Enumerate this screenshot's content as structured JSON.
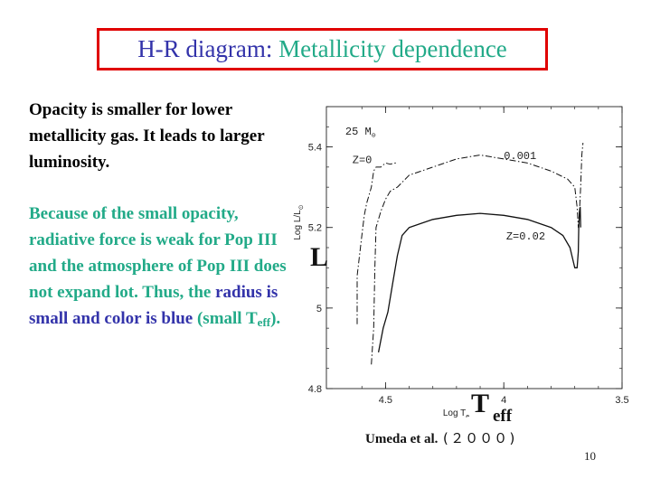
{
  "slide": {
    "title_part1": "H-R diagram:",
    "title_part2": "Metallicity dependence",
    "para1": "Opacity is smaller for lower metallicity gas. It leads to larger luminosity.",
    "para2_green": "Because of the small opacity, radiative force is weak for Pop III and the atmosphere of Pop III does not expand lot. Thus, the",
    "para2_blue": "radius is small and color is blue",
    "para2_green2": "(small T",
    "para2_sub": "eff",
    "para2_end": ").",
    "overlay_L": "L",
    "overlay_T": "T",
    "overlay_eff": "eff",
    "caption_authors": "Umeda et al.",
    "caption_year": "(２０００)",
    "page_number": "10"
  },
  "chart_data": {
    "type": "line",
    "xlabel": "Log T",
    "xlabel_sub": "e",
    "ylabel": "Log L/L",
    "ylabel_sub": "⊙",
    "xlim": [
      4.75,
      3.5
    ],
    "ylim": [
      4.8,
      5.5
    ],
    "x_ticks": [
      "4.5",
      "4",
      "3.5"
    ],
    "x_tick_values": [
      4.5,
      4.0,
      3.5
    ],
    "y_ticks": [
      "4.8",
      "5",
      "5.2",
      "5.4"
    ],
    "y_tick_values": [
      4.8,
      5.0,
      5.2,
      5.4
    ],
    "annotations": [
      {
        "text": "25  M",
        "sub": "⊙",
        "x": 4.67,
        "y": 5.43
      },
      {
        "text": "Z=0",
        "x": 4.64,
        "y": 5.36
      },
      {
        "text": "0.001",
        "x": 4.0,
        "y": 5.37
      },
      {
        "text": "Z=0.02",
        "x": 3.99,
        "y": 5.17
      }
    ],
    "series": [
      {
        "name": "Z=0",
        "style": "dashdot",
        "x": [
          4.62,
          4.62,
          4.6,
          4.59,
          4.58,
          4.57,
          4.56,
          4.555,
          4.55,
          4.54,
          4.52,
          4.51,
          4.5,
          4.48,
          4.46,
          4.45
        ],
        "y": [
          4.96,
          5.08,
          5.18,
          5.23,
          5.26,
          5.28,
          5.3,
          5.32,
          5.34,
          5.35,
          5.35,
          5.355,
          5.36,
          5.357,
          5.36,
          5.36
        ]
      },
      {
        "name": "0.001",
        "style": "dashdot",
        "x": [
          4.56,
          4.55,
          4.545,
          4.54,
          4.52,
          4.5,
          4.48,
          4.45,
          4.4,
          4.3,
          4.2,
          4.1,
          4.0,
          3.9,
          3.8,
          3.73,
          3.7,
          3.69,
          3.685,
          3.68,
          3.675,
          3.67,
          3.665
        ],
        "y": [
          4.86,
          4.95,
          5.1,
          5.2,
          5.24,
          5.27,
          5.29,
          5.3,
          5.33,
          5.35,
          5.37,
          5.38,
          5.37,
          5.36,
          5.34,
          5.32,
          5.3,
          5.25,
          5.2,
          5.24,
          5.3,
          5.38,
          5.41
        ]
      },
      {
        "name": "Z=0.02",
        "style": "solid",
        "x": [
          4.53,
          4.52,
          4.51,
          4.49,
          4.47,
          4.45,
          4.43,
          4.4,
          4.35,
          4.3,
          4.2,
          4.1,
          4.0,
          3.9,
          3.8,
          3.75,
          3.72,
          3.7,
          3.69,
          3.685,
          3.683,
          3.68,
          3.677,
          3.675
        ],
        "y": [
          4.89,
          4.92,
          4.95,
          4.99,
          5.06,
          5.13,
          5.18,
          5.2,
          5.21,
          5.22,
          5.23,
          5.235,
          5.23,
          5.22,
          5.2,
          5.18,
          5.15,
          5.1,
          5.1,
          5.14,
          5.2,
          5.24,
          5.25,
          5.2
        ]
      }
    ]
  }
}
